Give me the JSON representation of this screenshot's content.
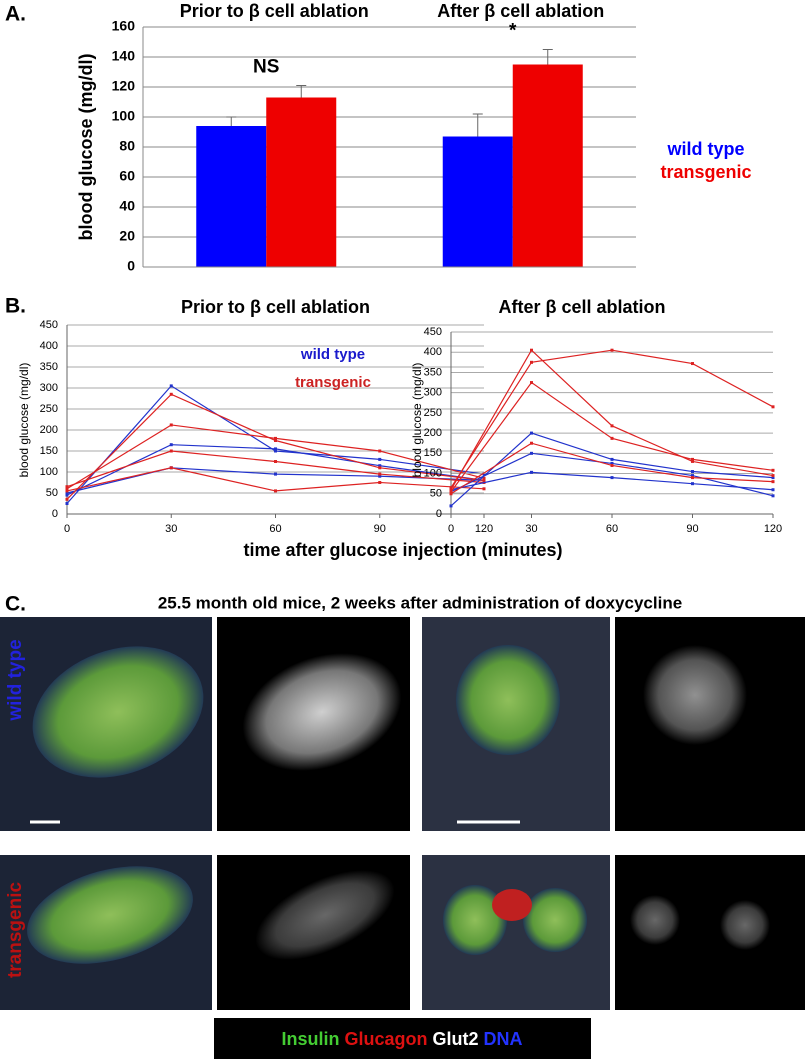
{
  "chart_data": [
    {
      "type": "bar",
      "categories": [
        "Prior to β cell ablation",
        "After β cell ablation"
      ],
      "ylabel": "blood glucose (mg/dl)",
      "series": [
        {
          "name": "wild type",
          "color": "#0000ff",
          "values": [
            94,
            87
          ],
          "errors": [
            6,
            15
          ]
        },
        {
          "name": "transgenic",
          "color": "#ee0000",
          "values": [
            113,
            135
          ],
          "errors": [
            8,
            10
          ]
        }
      ],
      "annotations": [
        "NS",
        "*"
      ],
      "ylim": [
        0,
        160
      ],
      "yticks": [
        0,
        20,
        40,
        60,
        80,
        100,
        120,
        140,
        160
      ],
      "grid": true
    },
    {
      "type": "line",
      "title": "Prior to β cell ablation",
      "ylabel": "blood glucose (mg/dl)",
      "x": [
        0,
        30,
        60,
        90,
        120
      ],
      "xlim": [
        0,
        120
      ],
      "xticks": [
        0,
        30,
        60,
        90,
        120
      ],
      "ylim": [
        0,
        450
      ],
      "yticks": [
        0,
        50,
        100,
        150,
        200,
        250,
        300,
        350,
        400,
        450
      ],
      "grid": true,
      "legend": [
        {
          "name": "wild type",
          "color": "#1a1acc"
        },
        {
          "name": "transgenic",
          "color": "#cc2222"
        }
      ],
      "series": [
        {
          "color": "#2233cc",
          "values": [
            25,
            305,
            150,
            130,
            95
          ]
        },
        {
          "color": "#2233cc",
          "values": [
            45,
            165,
            155,
            115,
            80
          ]
        },
        {
          "color": "#2233cc",
          "values": [
            50,
            110,
            95,
            90,
            80
          ]
        },
        {
          "color": "#dd2222",
          "values": [
            35,
            285,
            175,
            110,
            80
          ]
        },
        {
          "color": "#dd2222",
          "values": [
            60,
            212,
            180,
            150,
            85
          ]
        },
        {
          "color": "#dd2222",
          "values": [
            65,
            150,
            125,
            95,
            75
          ]
        },
        {
          "color": "#dd2222",
          "values": [
            55,
            110,
            55,
            75,
            60
          ]
        }
      ]
    },
    {
      "type": "line",
      "title": "After β cell ablation",
      "ylabel": "blood glucose (mg/dl)",
      "x": [
        0,
        30,
        60,
        90,
        120
      ],
      "xlim": [
        0,
        120
      ],
      "xticks": [
        0,
        30,
        60,
        90,
        120
      ],
      "ylim": [
        0,
        450
      ],
      "yticks": [
        0,
        50,
        100,
        150,
        200,
        250,
        300,
        350,
        400,
        450
      ],
      "grid": true,
      "series": [
        {
          "color": "#2233cc",
          "values": [
            20,
            200,
            135,
            105,
            90
          ]
        },
        {
          "color": "#2233cc",
          "values": [
            55,
            150,
            125,
            95,
            45
          ]
        },
        {
          "color": "#2233cc",
          "values": [
            60,
            103,
            90,
            75,
            60
          ]
        },
        {
          "color": "#dd2222",
          "values": [
            60,
            405,
            218,
            130,
            95
          ]
        },
        {
          "color": "#dd2222",
          "values": [
            65,
            375,
            405,
            372,
            265
          ]
        },
        {
          "color": "#dd2222",
          "values": [
            55,
            325,
            187,
            135,
            108
          ]
        },
        {
          "color": "#dd2222",
          "values": [
            50,
            175,
            120,
            90,
            80
          ]
        }
      ]
    }
  ],
  "figure": {
    "panel_labels": [
      "A.",
      "B.",
      "C."
    ],
    "shared_xlabel": "time after glucose injection (minutes)",
    "panel_c": {
      "title": "25.5 month old mice, 2 weeks after administration of doxycycline",
      "row_labels": [
        {
          "text": "wild type",
          "color": "#2222dd"
        },
        {
          "text": "transgenic",
          "color": "#bb1111"
        }
      ],
      "stain_legend": [
        {
          "name": "Insulin",
          "color": "#44cc33"
        },
        {
          "name": "Glucagon",
          "color": "#dd1111"
        },
        {
          "name": "Glut2",
          "color": "#ffffff"
        },
        {
          "name": "DNA",
          "color": "#2233ff"
        }
      ]
    }
  }
}
